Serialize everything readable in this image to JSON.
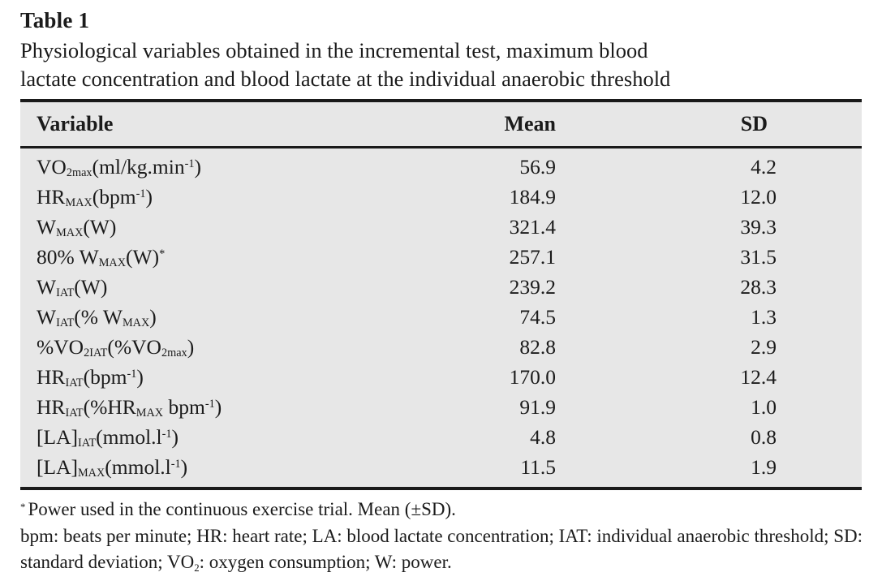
{
  "page": {
    "label": "Table 1",
    "caption_lines": [
      "Physiological variables obtained in the incremental test, maximum blood",
      "lactate concentration and blood lactate at the individual anaerobic threshold"
    ]
  },
  "table": {
    "columns": [
      "Variable",
      "Mean",
      "SD"
    ],
    "rows": [
      {
        "variable": [
          {
            "t": "text",
            "v": "VO"
          },
          {
            "t": "sub",
            "v": "2max"
          },
          {
            "t": "text",
            "v": "(ml/kg.min"
          },
          {
            "t": "sup",
            "v": "-1"
          },
          {
            "t": "text",
            "v": ")"
          }
        ],
        "mean": "56.9",
        "sd": "4.2"
      },
      {
        "variable": [
          {
            "t": "text",
            "v": "HR"
          },
          {
            "t": "sub",
            "v": "MAX"
          },
          {
            "t": "text",
            "v": "(bpm"
          },
          {
            "t": "sup",
            "v": "-1"
          },
          {
            "t": "text",
            "v": ")"
          }
        ],
        "mean": "184.9",
        "sd": "12.0"
      },
      {
        "variable": [
          {
            "t": "text",
            "v": "W"
          },
          {
            "t": "sub",
            "v": "MAX"
          },
          {
            "t": "text",
            "v": "(W)"
          }
        ],
        "mean": "321.4",
        "sd": "39.3"
      },
      {
        "variable": [
          {
            "t": "text",
            "v": "80% W"
          },
          {
            "t": "sub",
            "v": "MAX"
          },
          {
            "t": "text",
            "v": "(W)"
          },
          {
            "t": "sup",
            "v": "*"
          }
        ],
        "mean": "257.1",
        "sd": "31.5"
      },
      {
        "variable": [
          {
            "t": "text",
            "v": "W"
          },
          {
            "t": "sub",
            "v": "IAT"
          },
          {
            "t": "text",
            "v": "(W)"
          }
        ],
        "mean": "239.2",
        "sd": "28.3"
      },
      {
        "variable": [
          {
            "t": "text",
            "v": "W"
          },
          {
            "t": "sub",
            "v": "IAT"
          },
          {
            "t": "text",
            "v": "(% W"
          },
          {
            "t": "sub",
            "v": "MAX"
          },
          {
            "t": "text",
            "v": ")"
          }
        ],
        "mean": "74.5",
        "sd": "1.3"
      },
      {
        "variable": [
          {
            "t": "text",
            "v": "%VO"
          },
          {
            "t": "sub",
            "v": "2IAT"
          },
          {
            "t": "text",
            "v": "(%VO"
          },
          {
            "t": "sub",
            "v": "2max"
          },
          {
            "t": "text",
            "v": ")"
          }
        ],
        "mean": "82.8",
        "sd": "2.9"
      },
      {
        "variable": [
          {
            "t": "text",
            "v": "HR"
          },
          {
            "t": "sub",
            "v": "IAT"
          },
          {
            "t": "text",
            "v": "(bpm"
          },
          {
            "t": "sup",
            "v": "-1"
          },
          {
            "t": "text",
            "v": ")"
          }
        ],
        "mean": "170.0",
        "sd": "12.4"
      },
      {
        "variable": [
          {
            "t": "text",
            "v": "HR"
          },
          {
            "t": "sub",
            "v": "IAT"
          },
          {
            "t": "text",
            "v": "(%HR"
          },
          {
            "t": "sub",
            "v": "MAX"
          },
          {
            "t": "text",
            "v": " bpm"
          },
          {
            "t": "sup",
            "v": "-1"
          },
          {
            "t": "text",
            "v": ")"
          }
        ],
        "mean": "91.9",
        "sd": "1.0"
      },
      {
        "variable": [
          {
            "t": "text",
            "v": "[LA]"
          },
          {
            "t": "sub",
            "v": "IAT"
          },
          {
            "t": "text",
            "v": "(mmol.l"
          },
          {
            "t": "sup",
            "v": "-1"
          },
          {
            "t": "text",
            "v": ")"
          }
        ],
        "mean": "4.8",
        "sd": "0.8"
      },
      {
        "variable": [
          {
            "t": "text",
            "v": "[LA]"
          },
          {
            "t": "sub",
            "v": "MAX"
          },
          {
            "t": "text",
            "v": "(mmol.l"
          },
          {
            "t": "sup",
            "v": "-1"
          },
          {
            "t": "text",
            "v": ")"
          }
        ],
        "mean": "11.5",
        "sd": "1.9"
      }
    ]
  },
  "footnotes": {
    "star_marker": "*",
    "star_text": "Power used in the continuous exercise trial. Mean (±SD).",
    "abbreviations": [
      {
        "t": "text",
        "v": "bpm: beats per minute; HR: heart rate; LA: blood lactate concentration; IAT: individual anaerobic threshold; SD: standard deviation; VO"
      },
      {
        "t": "sub",
        "v": "2"
      },
      {
        "t": "text",
        "v": ": oxygen consumption; W: power."
      }
    ]
  },
  "colors": {
    "table_background": "#e7e7e7",
    "rule": "#1a1a1a",
    "text": "#1b1b1b",
    "page_background": "#ffffff"
  }
}
